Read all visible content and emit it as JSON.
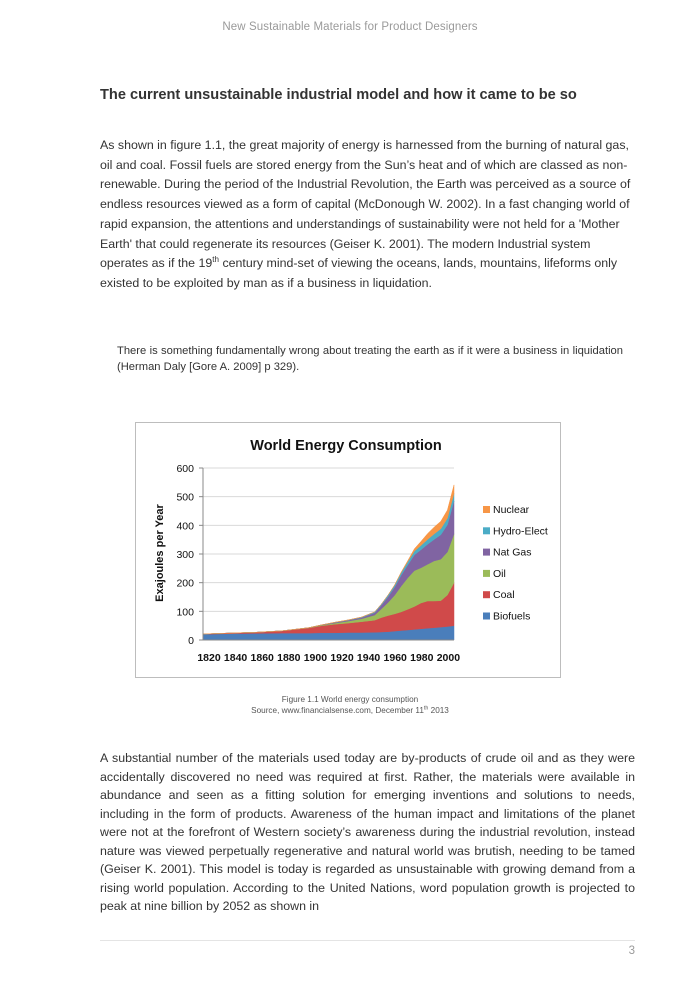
{
  "header": {
    "title": "New Sustainable Materials for Product Designers"
  },
  "section": {
    "heading": "The current unsustainable industrial model and how it came to be so"
  },
  "paragraph1": {
    "part_a": "As shown in figure 1.1, the great majority of energy is harnessed from the burning of natural gas, oil and coal.  Fossil fuels are stored energy from the Sun’s heat and of which are classed as non-renewable.  During the period of the Industrial Revolution, the Earth was perceived as a source of endless resources viewed as a form of capital (McDonough W. 2002).  In a fast changing world of rapid expansion, the attentions and understandings of sustainability were not held for a 'Mother Earth' that could regenerate its resources (Geiser K. 2001).  The modern Industrial system operates as if the 19",
    "sup": "th",
    "part_b": " century mind-set of viewing the oceans, lands, mountains, lifeforms  only existed to be exploited by man as if a business in liquidation."
  },
  "quote": {
    "text": "There is something fundamentally wrong about treating the earth as if it were a business in liquidation (Herman Daly [Gore A. 2009] p 329)."
  },
  "chart_data": {
    "type": "area",
    "stacked": true,
    "title": "World Energy Consumption",
    "xlabel": "",
    "ylabel": "Exajoules per Year",
    "ylim": [
      0,
      600
    ],
    "y_ticks": [
      0,
      100,
      200,
      300,
      400,
      500,
      600
    ],
    "x_ticks": [
      "1820",
      "1840",
      "1860",
      "1880",
      "1900",
      "1920",
      "1940",
      "1960",
      "1980",
      "2000"
    ],
    "grid": true,
    "legend_position": "right",
    "x": [
      1820,
      1840,
      1860,
      1880,
      1900,
      1910,
      1920,
      1930,
      1940,
      1950,
      1955,
      1960,
      1965,
      1970,
      1975,
      1980,
      1985,
      1990,
      1995,
      2000,
      2005,
      2010
    ],
    "series": [
      {
        "name": "Biofuels",
        "color": "#4a7ebb",
        "values": [
          20,
          22,
          23,
          24,
          24,
          25,
          25,
          26,
          26,
          27,
          28,
          29,
          31,
          33,
          35,
          37,
          39,
          41,
          43,
          45,
          47,
          50
        ]
      },
      {
        "name": "Coal",
        "color": "#d04a4a",
        "values": [
          1,
          2,
          4,
          8,
          18,
          25,
          30,
          33,
          38,
          42,
          50,
          56,
          60,
          65,
          72,
          80,
          90,
          95,
          93,
          92,
          110,
          150
        ]
      },
      {
        "name": "Oil",
        "color": "#9bbb59",
        "values": [
          0,
          0,
          0,
          0,
          1,
          2,
          4,
          7,
          10,
          18,
          30,
          45,
          65,
          90,
          110,
          125,
          123,
          128,
          140,
          145,
          150,
          170
        ]
      },
      {
        "name": "Nat Gas",
        "color": "#8064a2",
        "values": [
          0,
          0,
          0,
          0,
          0,
          1,
          2,
          3,
          4,
          8,
          13,
          20,
          28,
          38,
          45,
          55,
          63,
          70,
          75,
          85,
          95,
          115
        ]
      },
      {
        "name": "Hydro-Elect",
        "color": "#4bacc6",
        "values": [
          0,
          0,
          0,
          0,
          0,
          0,
          1,
          1,
          2,
          3,
          4,
          6,
          7,
          9,
          11,
          13,
          15,
          17,
          19,
          21,
          23,
          26
        ]
      },
      {
        "name": "Nuclear",
        "color": "#f79646",
        "values": [
          0,
          0,
          0,
          0,
          0,
          0,
          0,
          0,
          0,
          0,
          0,
          0,
          1,
          2,
          4,
          8,
          14,
          20,
          24,
          26,
          28,
          30
        ]
      }
    ]
  },
  "caption": {
    "line1": "Figure 1.1 World energy consumption",
    "line2_a": "Source, www.financialsense.com, December 11",
    "line2_sup": "th",
    "line2_b": " 2013"
  },
  "paragraph2": {
    "text": " A substantial number of the materials used today are by-products of crude oil and as they were accidentally discovered no need was required at first.  Rather, the materials were available in abundance and seen as a fitting solution for emerging inventions and solutions to needs, including in the form of products.  Awareness of the human impact and limitations of the planet were not at the forefront of Western society’s awareness during the industrial revolution, instead nature was viewed perpetually regenerative and natural world was brutish, needing to be tamed (Geiser K. 2001).  This model is today is regarded as unsustainable with growing demand from a rising world population.  According to the United Nations, word population growth is projected to peak at nine billion by 2052 as shown in"
  },
  "footer": {
    "page_number": "3"
  }
}
